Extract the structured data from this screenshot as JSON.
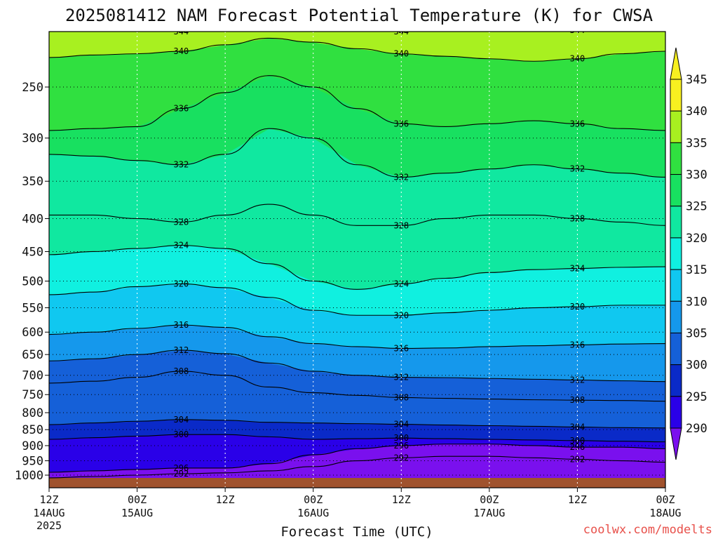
{
  "title": "2025081412 NAM Forecast Potential Temperature (K) for CWSA",
  "xlabel": "Forecast Time (UTC)",
  "credit": "coolwx.com/modelts",
  "colors": {
    "bands": [
      "#7a10ee",
      "#2a00e8",
      "#0a2ac8",
      "#1560d8",
      "#1598ec",
      "#10c8f0",
      "#10f0e0",
      "#10e8a0",
      "#18e060",
      "#30e040",
      "#a8f020",
      "#f8f020"
    ],
    "ground": "#a0522d"
  },
  "chart_data": {
    "type": "heatmap",
    "title": "2025081412 NAM Forecast Potential Temperature (K) for CWSA",
    "xlabel": "Forecast Time (UTC)",
    "ylabel": "",
    "xlim": [
      0,
      84
    ],
    "ylim": [
      1025,
      200
    ],
    "y_scale": "log-pressure",
    "grid": true,
    "x_ticks": [
      {
        "hour": 0,
        "label": "12Z",
        "date": "14AUG",
        "year": "2025"
      },
      {
        "hour": 12,
        "label": "00Z",
        "date": "15AUG",
        "year": ""
      },
      {
        "hour": 24,
        "label": "12Z",
        "date": "",
        "year": ""
      },
      {
        "hour": 36,
        "label": "00Z",
        "date": "16AUG",
        "year": ""
      },
      {
        "hour": 48,
        "label": "12Z",
        "date": "",
        "year": ""
      },
      {
        "hour": 60,
        "label": "00Z",
        "date": "17AUG",
        "year": ""
      },
      {
        "hour": 72,
        "label": "12Z",
        "date": "",
        "year": ""
      },
      {
        "hour": 84,
        "label": "00Z",
        "date": "18AUG",
        "year": ""
      }
    ],
    "y_ticks": [
      250,
      300,
      350,
      400,
      450,
      500,
      550,
      600,
      650,
      700,
      750,
      800,
      850,
      900,
      950,
      1000
    ],
    "colorbar": {
      "levels": [
        290,
        295,
        300,
        305,
        310,
        315,
        320,
        325,
        330,
        335,
        340,
        345
      ],
      "extend": "both"
    },
    "contour_interval": 2,
    "contours": [
      {
        "value": 292,
        "label": "292",
        "p": [
          1010,
          1005,
          1000,
          995,
          992,
          985,
          970,
          950,
          940,
          935,
          935,
          940,
          945,
          950,
          955
        ]
      },
      {
        "value": 296,
        "label": "296",
        "p": [
          990,
          985,
          980,
          975,
          975,
          960,
          930,
          910,
          900,
          895,
          895,
          900,
          905,
          905,
          910
        ]
      },
      {
        "value": 300,
        "label": "300",
        "p": [
          880,
          875,
          870,
          865,
          865,
          872,
          880,
          878,
          876,
          878,
          880,
          882,
          884,
          886,
          888
        ]
      },
      {
        "value": 304,
        "label": "304",
        "p": [
          835,
          830,
          825,
          820,
          822,
          828,
          830,
          832,
          834,
          836,
          838,
          840,
          842,
          844,
          845
        ]
      },
      {
        "value": 308,
        "label": "308",
        "p": [
          720,
          715,
          705,
          690,
          700,
          730,
          745,
          752,
          758,
          760,
          762,
          764,
          765,
          766,
          768
        ]
      },
      {
        "value": 312,
        "label": "312",
        "p": [
          665,
          660,
          650,
          640,
          648,
          670,
          690,
          700,
          705,
          706,
          708,
          710,
          712,
          714,
          716
        ]
      },
      {
        "value": 316,
        "label": "316",
        "p": [
          605,
          600,
          592,
          585,
          590,
          610,
          625,
          632,
          636,
          635,
          632,
          630,
          628,
          626,
          625
        ]
      },
      {
        "value": 320,
        "label": "320",
        "p": [
          525,
          520,
          510,
          505,
          512,
          530,
          555,
          565,
          565,
          560,
          555,
          550,
          548,
          545,
          545
        ]
      },
      {
        "value": 324,
        "label": "324",
        "p": [
          455,
          450,
          445,
          440,
          445,
          470,
          500,
          515,
          505,
          495,
          485,
          480,
          478,
          476,
          475
        ]
      },
      {
        "value": 328,
        "label": "328",
        "p": [
          395,
          395,
          400,
          405,
          395,
          380,
          395,
          410,
          410,
          400,
          395,
          395,
          400,
          405,
          410
        ]
      },
      {
        "value": 332,
        "label": "332",
        "p": [
          318,
          320,
          325,
          330,
          318,
          290,
          300,
          330,
          345,
          340,
          335,
          330,
          335,
          340,
          345
        ]
      },
      {
        "value": 336,
        "label": "336",
        "p": [
          292,
          290,
          288,
          270,
          255,
          240,
          250,
          270,
          285,
          288,
          285,
          282,
          285,
          290,
          292
        ]
      },
      {
        "value": 340,
        "label": "340",
        "p": [
          225,
          223,
          222,
          220,
          215,
          210,
          213,
          218,
          222,
          224,
          226,
          228,
          226,
          222,
          220
        ]
      },
      {
        "value": 344,
        "label": "344",
        "p": [
          205,
          205,
          205,
          205,
          205,
          205,
          205,
          205,
          205,
          205,
          205,
          204,
          204,
          205,
          205
        ]
      }
    ],
    "contour_hours": [
      0,
      6,
      12,
      18,
      24,
      30,
      36,
      42,
      48,
      54,
      60,
      66,
      72,
      78,
      84
    ]
  }
}
